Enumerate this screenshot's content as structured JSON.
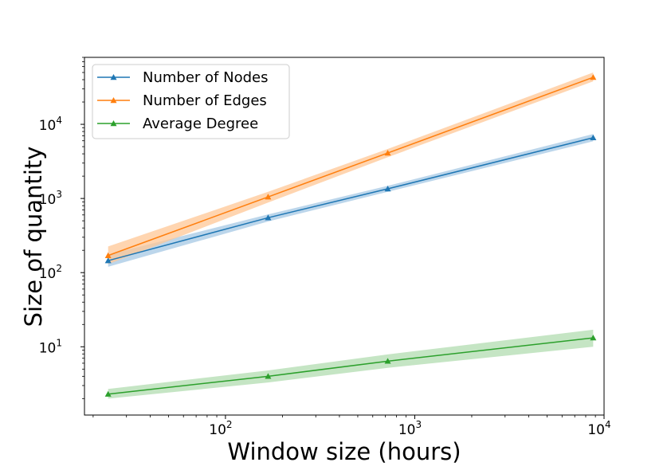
{
  "chart_data": {
    "type": "line",
    "title": "",
    "xlabel": "Window size (hours)",
    "ylabel": "Size of quantity",
    "xscale": "log",
    "yscale": "log",
    "xlim": [
      18,
      10000
    ],
    "ylim": [
      1.2,
      80000
    ],
    "grid": false,
    "legend_position": "top-left",
    "x": [
      24,
      168,
      720,
      8760
    ],
    "x_ticks": [
      {
        "value": 100,
        "base": "10",
        "exp": "2"
      },
      {
        "value": 1000,
        "base": "10",
        "exp": "3"
      },
      {
        "value": 10000,
        "base": "10",
        "exp": "4"
      }
    ],
    "y_ticks": [
      {
        "value": 10,
        "base": "10",
        "exp": "1"
      },
      {
        "value": 100,
        "base": "10",
        "exp": "2"
      },
      {
        "value": 1000,
        "base": "10",
        "exp": "3"
      },
      {
        "value": 10000,
        "base": "10",
        "exp": "4"
      }
    ],
    "series": [
      {
        "name": "Number of Nodes",
        "color": "#1f77b4",
        "band_color": "#a6c8e4",
        "marker": "triangle-up",
        "values": [
          145,
          550,
          1350,
          6600
        ],
        "lower": [
          120,
          490,
          1230,
          5900
        ],
        "upper": [
          175,
          610,
          1480,
          7400
        ]
      },
      {
        "name": "Number of Edges",
        "color": "#ff7f0e",
        "band_color": "#ffc796",
        "marker": "triangle-up",
        "values": [
          170,
          1050,
          4100,
          43000
        ],
        "lower": [
          130,
          880,
          3600,
          38000
        ],
        "upper": [
          225,
          1230,
          4650,
          50000
        ]
      },
      {
        "name": "Average Degree",
        "color": "#2ca02c",
        "band_color": "#b2dcb0",
        "marker": "triangle-up",
        "values": [
          2.3,
          4.0,
          6.4,
          13.2
        ],
        "lower": [
          2.0,
          3.3,
          5.2,
          10.0
        ],
        "upper": [
          2.7,
          4.8,
          7.9,
          17.0
        ]
      }
    ]
  }
}
